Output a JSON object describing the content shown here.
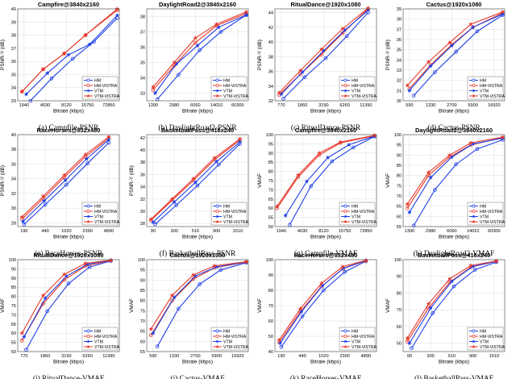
{
  "figure": {
    "legend_labels": [
      "HM",
      "HM-ViSTRA",
      "VTM",
      "VTM-ViSTRA"
    ],
    "series_colors": [
      "#1f3fe6",
      "#e63b2e",
      "#1f3fe6",
      "#e63b2e"
    ]
  },
  "chart_data": [
    {
      "type": "line",
      "title": "Campfire@3840x2160",
      "caption": "(a) Campfile-PSNR",
      "xlabel": "Bitrate (kbps)",
      "ylabel": "PSNR-Y (dB)",
      "xticks": [
        "1940",
        "4030",
        "8120",
        "15750",
        "72850"
      ],
      "ylim": [
        33,
        40
      ],
      "yticks": [
        33,
        34,
        35,
        36,
        37,
        38,
        39,
        40
      ],
      "legend": "bottom-right",
      "series": [
        {
          "name": "HM",
          "x": [
            0.3,
            1.3,
            2.3,
            3.3,
            4.4
          ],
          "y": [
            33.0,
            34.7,
            36.2,
            37.5,
            39.3
          ]
        },
        {
          "name": "HM-ViSTRA",
          "x": [
            -0.1,
            0.9,
            1.9,
            2.9,
            4.4
          ],
          "y": [
            33.7,
            35.4,
            36.6,
            38.0,
            39.9
          ]
        },
        {
          "name": "VTM",
          "x": [
            0.1,
            1.1,
            2.1,
            3.1,
            4.4
          ],
          "y": [
            33.5,
            35.1,
            36.5,
            37.3,
            39.5
          ]
        },
        {
          "name": "VTM-ViSTRA",
          "x": [
            -0.1,
            0.9,
            1.9,
            2.9,
            4.4
          ],
          "y": [
            33.7,
            35.4,
            36.6,
            38.0,
            40.0
          ]
        }
      ]
    },
    {
      "type": "line",
      "title": "DaylightRoad2@3840x2160",
      "caption": "(b) DaylightRoad2-PSNR",
      "xlabel": "Bitrate (kbps)",
      "ylabel": "",
      "xticks": [
        "1390",
        "2980",
        "6060",
        "14010",
        "60300"
      ],
      "ylim": [
        32.5,
        38.5
      ],
      "yticks": [
        33,
        34,
        35,
        36,
        37,
        38
      ],
      "legend": "bottom-right",
      "series": [
        {
          "name": "HM",
          "x": [
            0.2,
            1.2,
            2.2,
            3.2,
            4.4
          ],
          "y": [
            32.6,
            34.2,
            35.8,
            37.0,
            38.1
          ]
        },
        {
          "name": "HM-ViSTRA",
          "x": [
            0.0,
            1.0,
            2.0,
            3.0,
            4.4
          ],
          "y": [
            33.2,
            34.8,
            36.3,
            37.4,
            38.2
          ]
        },
        {
          "name": "VTM",
          "x": [
            0.1,
            1.1,
            2.1,
            3.1,
            4.4
          ],
          "y": [
            33.0,
            34.9,
            36.1,
            37.3,
            38.1
          ]
        },
        {
          "name": "VTM-ViSTRA",
          "x": [
            0.0,
            1.0,
            2.0,
            3.0,
            4.4
          ],
          "y": [
            33.4,
            35.0,
            36.6,
            37.5,
            38.3
          ]
        }
      ]
    },
    {
      "type": "line",
      "title": "RitualDance@1920x1080",
      "caption": "(c) RitualDance-PSNR",
      "xlabel": "Bitrate (kbps)",
      "ylabel": "PSNR-Y (dB)",
      "xticks": [
        "770",
        "1860",
        "3190",
        "6260",
        "11390"
      ],
      "ylim": [
        32,
        44.5
      ],
      "yticks": [
        32,
        34,
        36,
        38,
        40,
        42,
        44
      ],
      "legend": "bottom-right",
      "series": [
        {
          "name": "HM",
          "x": [
            0.1,
            1.1,
            2.1,
            3.1,
            4.1
          ],
          "y": [
            32.3,
            35.2,
            37.8,
            40.8,
            44.0
          ]
        },
        {
          "name": "HM-ViSTRA",
          "x": [
            -0.1,
            0.9,
            1.9,
            2.9,
            4.1
          ],
          "y": [
            32.8,
            35.6,
            38.3,
            41.2,
            44.5
          ]
        },
        {
          "name": "VTM",
          "x": [
            0.0,
            1.0,
            2.0,
            3.0,
            4.1
          ],
          "y": [
            32.9,
            35.9,
            38.8,
            41.6,
            44.3
          ]
        },
        {
          "name": "VTM-ViSTRA",
          "x": [
            -0.1,
            0.9,
            1.9,
            2.9,
            4.1
          ],
          "y": [
            33.1,
            36.1,
            39.0,
            41.8,
            44.6
          ]
        }
      ]
    },
    {
      "type": "line",
      "title": "Cactus@1920x1080",
      "caption": "(d) Cactus-PSNR",
      "xlabel": "Bitrate (kbps)",
      "ylabel": "PSNR-Y (dB)",
      "xticks": [
        "590",
        "1330",
        "2700",
        "5900",
        "16920"
      ],
      "ylim": [
        30,
        39
      ],
      "yticks": [
        30,
        31,
        32,
        33,
        34,
        35,
        36,
        37,
        38,
        39
      ],
      "legend": "bottom-right",
      "series": [
        {
          "name": "HM",
          "x": [
            0.2,
            1.2,
            2.2,
            3.2,
            4.4
          ],
          "y": [
            30.5,
            32.8,
            34.8,
            36.8,
            38.4
          ]
        },
        {
          "name": "HM-ViSTRA",
          "x": [
            0.0,
            1.0,
            2.0,
            3.0,
            4.4
          ],
          "y": [
            31.2,
            33.5,
            35.5,
            37.2,
            38.6
          ]
        },
        {
          "name": "VTM",
          "x": [
            0.0,
            1.0,
            2.0,
            3.0,
            4.4
          ],
          "y": [
            31.0,
            33.4,
            35.4,
            37.2,
            38.5
          ]
        },
        {
          "name": "VTM-ViSTRA",
          "x": [
            -0.1,
            0.9,
            1.9,
            2.9,
            4.4
          ],
          "y": [
            31.5,
            33.8,
            35.7,
            37.5,
            38.7
          ]
        }
      ]
    },
    {
      "type": "line",
      "title": "RaceHorses@832x480",
      "caption": "(e) RaceHorses-PSNR",
      "xlabel": "Bitrate (kbps)",
      "ylabel": "PSNR-Y (dB)",
      "xticks": [
        "190",
        "440",
        "1020",
        "2390",
        "4890"
      ],
      "ylim": [
        27.5,
        40
      ],
      "yticks": [
        28,
        30,
        32,
        34,
        36,
        38,
        40
      ],
      "legend": "bottom-right",
      "series": [
        {
          "name": "HM",
          "x": [
            0.0,
            1.0,
            2.0,
            3.0,
            4.0
          ],
          "y": [
            27.8,
            30.5,
            33.2,
            36.1,
            38.9
          ]
        },
        {
          "name": "HM-ViSTRA",
          "x": [
            -0.1,
            0.9,
            1.9,
            2.9,
            4.0
          ],
          "y": [
            28.5,
            31.3,
            34.2,
            37.0,
            39.5
          ]
        },
        {
          "name": "VTM",
          "x": [
            -0.05,
            0.95,
            1.95,
            2.95,
            4.0
          ],
          "y": [
            28.2,
            31.0,
            33.8,
            36.7,
            39.3
          ]
        },
        {
          "name": "VTM-ViSTRA",
          "x": [
            -0.1,
            0.9,
            1.9,
            2.9,
            4.0
          ],
          "y": [
            28.8,
            31.6,
            34.5,
            37.3,
            39.7
          ]
        }
      ]
    },
    {
      "type": "line",
      "title": "BasketballPass@416x240",
      "caption": "(f) BasketballPass-PSNR",
      "xlabel": "Bitrate (kbps)",
      "ylabel": "PSNR-Y (dB)",
      "xticks": [
        "90",
        "300",
        "510",
        "900",
        "1510"
      ],
      "ylim": [
        27.5,
        42.5
      ],
      "yticks": [
        28,
        30,
        32,
        34,
        36,
        38,
        40,
        42
      ],
      "legend": "bottom-right",
      "series": [
        {
          "name": "HM",
          "x": [
            0.1,
            1.1,
            2.1,
            3.1,
            4.1
          ],
          "y": [
            27.9,
            31.0,
            34.2,
            37.6,
            41.0
          ]
        },
        {
          "name": "HM-ViSTRA",
          "x": [
            -0.1,
            0.9,
            1.9,
            2.9,
            4.1
          ],
          "y": [
            28.5,
            31.8,
            35.0,
            38.4,
            41.6
          ]
        },
        {
          "name": "VTM",
          "x": [
            0.0,
            1.0,
            2.0,
            3.0,
            4.1
          ],
          "y": [
            28.2,
            31.5,
            34.7,
            38.1,
            41.3
          ]
        },
        {
          "name": "VTM-ViSTRA",
          "x": [
            -0.1,
            0.9,
            1.9,
            2.9,
            4.1
          ],
          "y": [
            28.7,
            32.0,
            35.3,
            38.7,
            41.8
          ]
        }
      ]
    },
    {
      "type": "line",
      "title": "Campfire@3840x2160",
      "caption": "(g) Campfile-VMAF",
      "xlabel": "Bitrate (kbps)",
      "ylabel": "VMAF",
      "xticks": [
        "1940",
        "4030",
        "8120",
        "15750",
        "72850"
      ],
      "ylim": [
        50,
        100
      ],
      "yticks": [
        50,
        55,
        60,
        65,
        70,
        75,
        80,
        85,
        90,
        95,
        100
      ],
      "legend": "bottom-right",
      "series": [
        {
          "name": "HM",
          "x": [
            0.4,
            1.4,
            2.4,
            3.4,
            4.4
          ],
          "y": [
            51.0,
            72.0,
            85.5,
            93.0,
            99.0
          ]
        },
        {
          "name": "HM-ViSTRA",
          "x": [
            -0.2,
            0.8,
            1.8,
            2.8,
            4.4
          ],
          "y": [
            60.0,
            77.0,
            89.0,
            95.5,
            99.4
          ]
        },
        {
          "name": "VTM",
          "x": [
            0.2,
            1.2,
            2.2,
            3.2,
            4.4
          ],
          "y": [
            56.0,
            74.5,
            87.5,
            94.5,
            99.2
          ]
        },
        {
          "name": "VTM-ViSTRA",
          "x": [
            -0.2,
            0.8,
            1.8,
            2.8,
            4.4
          ],
          "y": [
            61.0,
            78.0,
            90.0,
            96.0,
            99.6
          ]
        }
      ]
    },
    {
      "type": "line",
      "title": "DaylightRoad2@3840x2160",
      "caption": "(h) DaylightRoad2-VMAF",
      "xlabel": "Bitrate (kbps)",
      "ylabel": "VMAF",
      "xticks": [
        "1390",
        "2980",
        "6060",
        "14010",
        "60300"
      ],
      "ylim": [
        55,
        100
      ],
      "yticks": [
        55,
        60,
        65,
        70,
        75,
        80,
        85,
        90,
        95,
        100
      ],
      "legend": "bottom-right",
      "series": [
        {
          "name": "HM",
          "x": [
            0.2,
            1.2,
            2.2,
            3.2,
            4.4
          ],
          "y": [
            55.5,
            73.0,
            85.5,
            93.0,
            97.5
          ]
        },
        {
          "name": "HM-ViSTRA",
          "x": [
            -0.1,
            0.9,
            1.9,
            2.9,
            4.4
          ],
          "y": [
            64.0,
            80.0,
            89.0,
            95.0,
            98.5
          ]
        },
        {
          "name": "VTM",
          "x": [
            0.0,
            1.0,
            2.0,
            3.0,
            4.4
          ],
          "y": [
            62.0,
            79.0,
            89.0,
            95.5,
            98.3
          ]
        },
        {
          "name": "VTM-ViSTRA",
          "x": [
            -0.1,
            0.9,
            1.9,
            2.9,
            4.4
          ],
          "y": [
            66.0,
            81.5,
            90.0,
            96.0,
            98.8
          ]
        }
      ]
    },
    {
      "type": "line",
      "title": "RitualDance@1920x1080",
      "caption": "(i) RitualDance-VMAF",
      "xlabel": "Bitrate (kbps)",
      "ylabel": "VMAF",
      "xticks": [
        "770",
        "1860",
        "3190",
        "6260",
        "11390"
      ],
      "ylim": [
        50,
        100
      ],
      "yticks": [
        50,
        55,
        60,
        65,
        70,
        75,
        80,
        85,
        90,
        95,
        100
      ],
      "legend": "bottom-right",
      "series": [
        {
          "name": "HM",
          "x": [
            0.1,
            1.1,
            2.1,
            3.1,
            4.1
          ],
          "y": [
            51.0,
            72.0,
            87.0,
            96.0,
            99.3
          ]
        },
        {
          "name": "HM-ViSTRA",
          "x": [
            -0.1,
            0.9,
            1.9,
            2.9,
            4.1
          ],
          "y": [
            56.0,
            76.0,
            89.0,
            96.5,
            99.5
          ]
        },
        {
          "name": "VTM",
          "x": [
            0.0,
            1.0,
            2.0,
            3.0,
            4.1
          ],
          "y": [
            58.0,
            79.0,
            91.0,
            97.5,
            99.6
          ]
        },
        {
          "name": "VTM-ViSTRA",
          "x": [
            -0.1,
            0.9,
            1.9,
            2.9,
            4.1
          ],
          "y": [
            60.0,
            80.5,
            92.0,
            98.0,
            99.7
          ]
        }
      ]
    },
    {
      "type": "line",
      "title": "Cactus@1920x1080",
      "caption": "(j) Cactus-VMAF",
      "xlabel": "Bitrate (kbps)",
      "ylabel": "VMAF",
      "xticks": [
        "590",
        "1330",
        "2700",
        "5900",
        "16920"
      ],
      "ylim": [
        55,
        100
      ],
      "yticks": [
        55,
        60,
        65,
        70,
        75,
        80,
        85,
        90,
        95,
        100
      ],
      "legend": "bottom-right",
      "series": [
        {
          "name": "HM",
          "x": [
            0.2,
            1.2,
            2.2,
            3.2,
            4.4
          ],
          "y": [
            57.5,
            76.0,
            88.0,
            95.0,
            98.5
          ]
        },
        {
          "name": "HM-ViSTRA",
          "x": [
            -0.1,
            0.9,
            1.9,
            2.9,
            4.4
          ],
          "y": [
            63.0,
            80.0,
            90.5,
            96.0,
            98.8
          ]
        },
        {
          "name": "VTM",
          "x": [
            0.0,
            1.0,
            2.0,
            3.0,
            4.4
          ],
          "y": [
            64.0,
            81.5,
            92.0,
            96.5,
            98.9
          ]
        },
        {
          "name": "VTM-ViSTRA",
          "x": [
            -0.1,
            0.9,
            1.9,
            2.9,
            4.4
          ],
          "y": [
            66.0,
            82.5,
            92.5,
            97.0,
            99.0
          ]
        }
      ]
    },
    {
      "type": "line",
      "title": "RaceHorses@832x480",
      "caption": "(k) RaceHorses-VMAF",
      "xlabel": "Bitrate (kbps)",
      "ylabel": "VMAF",
      "xticks": [
        "190",
        "440",
        "1020",
        "2390",
        "4890"
      ],
      "ylim": [
        40,
        100
      ],
      "yticks": [
        40,
        50,
        60,
        70,
        80,
        90,
        100
      ],
      "legend": "bottom-right",
      "series": [
        {
          "name": "HM",
          "x": [
            0.0,
            1.0,
            2.0,
            3.0,
            4.0
          ],
          "y": [
            43.0,
            63.0,
            80.0,
            92.0,
            99.0
          ]
        },
        {
          "name": "HM-ViSTRA",
          "x": [
            -0.1,
            0.9,
            1.9,
            2.9,
            4.0
          ],
          "y": [
            46.0,
            66.0,
            82.5,
            94.0,
            99.3
          ]
        },
        {
          "name": "VTM",
          "x": [
            -0.05,
            0.95,
            1.95,
            2.95,
            4.0
          ],
          "y": [
            45.5,
            66.0,
            83.0,
            94.5,
            99.4
          ]
        },
        {
          "name": "VTM-ViSTRA",
          "x": [
            -0.1,
            0.9,
            1.9,
            2.9,
            4.0
          ],
          "y": [
            47.5,
            68.0,
            84.5,
            95.5,
            99.5
          ]
        }
      ]
    },
    {
      "type": "line",
      "title": "BasketballPass@416x240",
      "caption": "(l) BasketballPass-VMAF",
      "xlabel": "Bitrate (kbps)",
      "ylabel": "VMAF",
      "xticks": [
        "90",
        "300",
        "510",
        "900",
        "1510"
      ],
      "ylim": [
        45,
        100
      ],
      "yticks": [
        50,
        60,
        70,
        80,
        90,
        100
      ],
      "legend": "bottom-right",
      "series": [
        {
          "name": "HM",
          "x": [
            0.1,
            1.1,
            2.1,
            3.1,
            4.1
          ],
          "y": [
            47.0,
            68.0,
            84.0,
            94.0,
            98.5
          ]
        },
        {
          "name": "HM-ViSTRA",
          "x": [
            -0.1,
            0.9,
            1.9,
            2.9,
            4.1
          ],
          "y": [
            51.0,
            71.0,
            86.5,
            95.5,
            99.0
          ]
        },
        {
          "name": "VTM",
          "x": [
            0.0,
            1.0,
            2.0,
            3.0,
            4.1
          ],
          "y": [
            50.0,
            71.0,
            87.0,
            96.0,
            99.0
          ]
        },
        {
          "name": "VTM-ViSTRA",
          "x": [
            -0.1,
            0.9,
            1.9,
            2.9,
            4.1
          ],
          "y": [
            53.0,
            73.5,
            88.5,
            96.5,
            99.2
          ]
        }
      ]
    }
  ]
}
